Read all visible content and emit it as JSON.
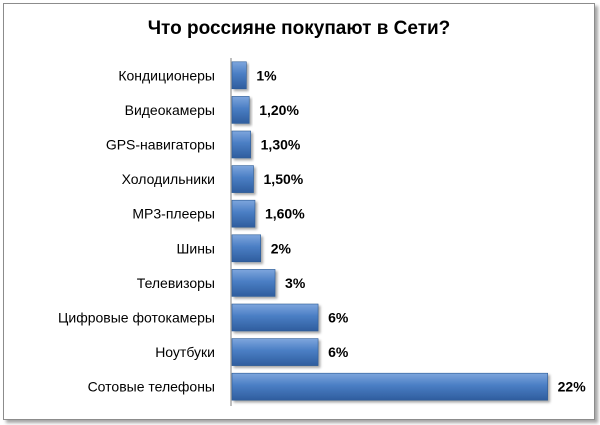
{
  "chart_data": {
    "type": "bar",
    "orientation": "horizontal",
    "title": "Что россияне покупают в Сети?",
    "categories": [
      "Кондиционеры",
      "Видеокамеры",
      "GPS-навигаторы",
      "Холодильники",
      "MP3-плееры",
      "Шины",
      "Телевизоры",
      "Цифровые фотокамеры",
      "Ноутбуки",
      "Сотовые телефоны"
    ],
    "values": [
      1,
      1.2,
      1.3,
      1.5,
      1.6,
      2,
      3,
      6,
      6,
      22
    ],
    "data_labels": [
      "1%",
      "1,20%",
      "1,30%",
      "1,50%",
      "1,60%",
      "2%",
      "3%",
      "6%",
      "6%",
      "22%"
    ],
    "xlim": [
      0,
      23
    ],
    "bar_color": "#4F81BD",
    "grid": false,
    "legend": "none"
  }
}
